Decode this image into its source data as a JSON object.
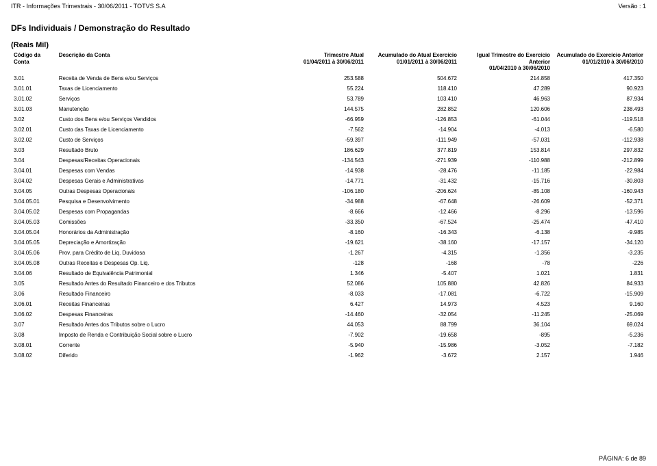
{
  "header": {
    "left": "ITR - Informações Trimestrais - 30/06/2011 - TOTVS S.A",
    "right": "Versão : 1"
  },
  "section_title": "DFs Individuais / Demonstração do Resultado",
  "subtitle": "(Reais Mil)",
  "columns": {
    "code": "Código da Conta",
    "desc": "Descrição da Conta",
    "c1a": "Trimestre Atual",
    "c1b": "01/04/2011 à 30/06/2011",
    "c2a": "Acumulado do Atual Exercício",
    "c2b": "01/01/2011 à 30/06/2011",
    "c3a": "Igual Trimestre do Exercício Anterior",
    "c3b": "01/04/2010 à 30/06/2010",
    "c4a": "Acumulado do Exercício Anterior",
    "c4b": "01/01/2010 à 30/06/2010"
  },
  "rows": [
    {
      "code": "3.01",
      "desc": "Receita de Venda de Bens e/ou Serviços",
      "v1": "253.588",
      "v2": "504.672",
      "v3": "214.858",
      "v4": "417.350"
    },
    {
      "code": "3.01.01",
      "desc": "Taxas de Licenciamento",
      "v1": "55.224",
      "v2": "118.410",
      "v3": "47.289",
      "v4": "90.923"
    },
    {
      "code": "3.01.02",
      "desc": "Serviços",
      "v1": "53.789",
      "v2": "103.410",
      "v3": "46.963",
      "v4": "87.934"
    },
    {
      "code": "3.01.03",
      "desc": "Manutenção",
      "v1": "144.575",
      "v2": "282.852",
      "v3": "120.606",
      "v4": "238.493"
    },
    {
      "code": "3.02",
      "desc": "Custo dos Bens e/ou Serviços Vendidos",
      "v1": "-66.959",
      "v2": "-126.853",
      "v3": "-61.044",
      "v4": "-119.518"
    },
    {
      "code": "3.02.01",
      "desc": "Custo das Taxas de Licenciamento",
      "v1": "-7.562",
      "v2": "-14.904",
      "v3": "-4.013",
      "v4": "-6.580"
    },
    {
      "code": "3.02.02",
      "desc": "Custo de Serviços",
      "v1": "-59.397",
      "v2": "-111.949",
      "v3": "-57.031",
      "v4": "-112.938"
    },
    {
      "code": "3.03",
      "desc": "Resultado Bruto",
      "v1": "186.629",
      "v2": "377.819",
      "v3": "153.814",
      "v4": "297.832"
    },
    {
      "code": "3.04",
      "desc": "Despesas/Receitas Operacionais",
      "v1": "-134.543",
      "v2": "-271.939",
      "v3": "-110.988",
      "v4": "-212.899"
    },
    {
      "code": "3.04.01",
      "desc": "Despesas com Vendas",
      "v1": "-14.938",
      "v2": "-28.476",
      "v3": "-11.185",
      "v4": "-22.984"
    },
    {
      "code": "3.04.02",
      "desc": "Despesas Gerais e Administrativas",
      "v1": "-14.771",
      "v2": "-31.432",
      "v3": "-15.716",
      "v4": "-30.803"
    },
    {
      "code": "3.04.05",
      "desc": "Outras Despesas Operacionais",
      "v1": "-106.180",
      "v2": "-206.624",
      "v3": "-85.108",
      "v4": "-160.943"
    },
    {
      "code": "3.04.05.01",
      "desc": "Pesquisa e Desenvolvimento",
      "v1": "-34.988",
      "v2": "-67.648",
      "v3": "-26.609",
      "v4": "-52.371"
    },
    {
      "code": "3.04.05.02",
      "desc": "Despesas com Propagandas",
      "v1": "-8.666",
      "v2": "-12.466",
      "v3": "-8.296",
      "v4": "-13.596"
    },
    {
      "code": "3.04.05.03",
      "desc": "Comissões",
      "v1": "-33.350",
      "v2": "-67.524",
      "v3": "-25.474",
      "v4": "-47.410"
    },
    {
      "code": "3.04.05.04",
      "desc": "Honorários da Administração",
      "v1": "-8.160",
      "v2": "-16.343",
      "v3": "-6.138",
      "v4": "-9.985"
    },
    {
      "code": "3.04.05.05",
      "desc": "Depreciação e Amortização",
      "v1": "-19.621",
      "v2": "-38.160",
      "v3": "-17.157",
      "v4": "-34.120"
    },
    {
      "code": "3.04.05.06",
      "desc": "Prov. para Crédito de Liq. Duvidosa",
      "v1": "-1.267",
      "v2": "-4.315",
      "v3": "-1.356",
      "v4": "-3.235"
    },
    {
      "code": "3.04.05.08",
      "desc": "Outras Receitas e Despesas Op. Liq.",
      "v1": "-128",
      "v2": "-168",
      "v3": "-78",
      "v4": "-226"
    },
    {
      "code": "3.04.06",
      "desc": "Resultado de Equivalência Patrimonial",
      "v1": "1.346",
      "v2": "-5.407",
      "v3": "1.021",
      "v4": "1.831"
    },
    {
      "code": "3.05",
      "desc": "Resultado Antes do Resultado Financeiro e dos Tributos",
      "v1": "52.086",
      "v2": "105.880",
      "v3": "42.826",
      "v4": "84.933"
    },
    {
      "code": "3.06",
      "desc": "Resultado Financeiro",
      "v1": "-8.033",
      "v2": "-17.081",
      "v3": "-6.722",
      "v4": "-15.909"
    },
    {
      "code": "3.06.01",
      "desc": "Receitas Financeiras",
      "v1": "6.427",
      "v2": "14.973",
      "v3": "4.523",
      "v4": "9.160"
    },
    {
      "code": "3.06.02",
      "desc": "Despesas Financeiras",
      "v1": "-14.460",
      "v2": "-32.054",
      "v3": "-11.245",
      "v4": "-25.069"
    },
    {
      "code": "3.07",
      "desc": "Resultado Antes dos Tributos sobre o Lucro",
      "v1": "44.053",
      "v2": "88.799",
      "v3": "36.104",
      "v4": "69.024"
    },
    {
      "code": "3.08",
      "desc": "Imposto de Renda e Contribuição Social sobre o Lucro",
      "v1": "-7.902",
      "v2": "-19.658",
      "v3": "-895",
      "v4": "-5.236"
    },
    {
      "code": "3.08.01",
      "desc": "Corrente",
      "v1": "-5.940",
      "v2": "-15.986",
      "v3": "-3.052",
      "v4": "-7.182"
    },
    {
      "code": "3.08.02",
      "desc": "Diferido",
      "v1": "-1.962",
      "v2": "-3.672",
      "v3": "2.157",
      "v4": "1.946"
    }
  ],
  "footer": "PÁGINA: 6 de 89"
}
